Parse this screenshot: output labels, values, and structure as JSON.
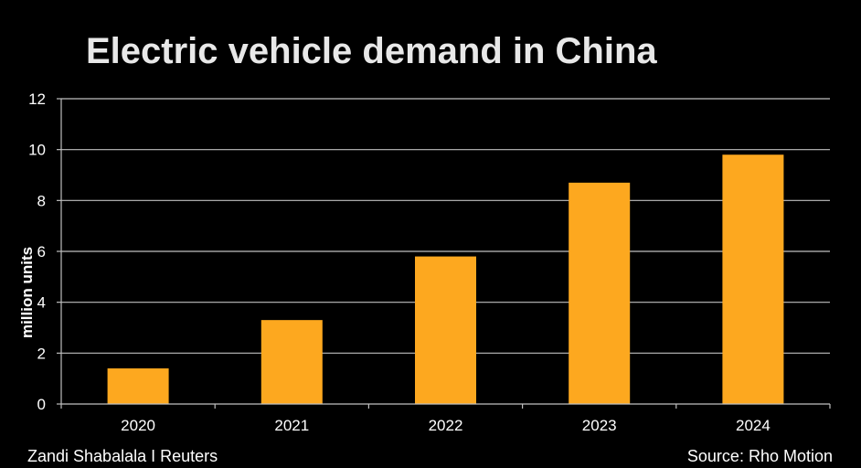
{
  "chart_data": {
    "type": "bar",
    "title": "Electric vehicle demand in China",
    "xlabel": "",
    "ylabel": "million units",
    "categories": [
      "2020",
      "2021",
      "2022",
      "2023",
      "2024"
    ],
    "values": [
      1.4,
      3.3,
      5.8,
      8.7,
      9.8
    ],
    "ylim": [
      0,
      12
    ],
    "yticks": [
      0,
      2,
      4,
      6,
      8,
      10,
      12
    ],
    "grid": true,
    "bar_color": "#FDA81F",
    "background_color": "#000000"
  },
  "footer": {
    "credit": "Zandi Shabalala I Reuters",
    "source": "Source: Rho Motion"
  }
}
